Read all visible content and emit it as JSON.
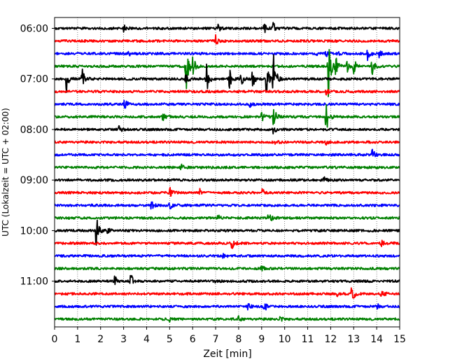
{
  "chart_data": {
    "type": "line",
    "title": "",
    "xlabel": "Zeit  [min]",
    "ylabel": "UTC (Lokalzeit = UTC + 02:00)",
    "xlim": [
      0,
      15
    ],
    "xticks": [
      0,
      1,
      2,
      3,
      4,
      5,
      6,
      7,
      8,
      9,
      10,
      11,
      12,
      13,
      14,
      15
    ],
    "xtick_labels": [
      "0",
      "1",
      "2",
      "3",
      "4",
      "5",
      "6",
      "7",
      "8",
      "9",
      "10",
      "11",
      "12",
      "13",
      "14",
      "15"
    ],
    "ytick_labels": [
      "06:00",
      "07:00",
      "08:00",
      "09:00",
      "10:00",
      "11:00"
    ],
    "ytick_rows": [
      0,
      4,
      8,
      12,
      16,
      20
    ],
    "grid": "vertical dotted",
    "row_minutes": 15,
    "colors": [
      "#000000",
      "#ff0000",
      "#0000ff",
      "#008000"
    ],
    "series": [
      {
        "start": "06:00",
        "color": "#000000",
        "events": [
          {
            "t": 3.0,
            "a": 6
          },
          {
            "t": 7.1,
            "a": 5
          },
          {
            "t": 9.1,
            "a": 8
          },
          {
            "t": 9.5,
            "a": 10
          }
        ]
      },
      {
        "start": "06:15",
        "color": "#ff0000",
        "events": [
          {
            "t": 7.0,
            "a": 9
          }
        ]
      },
      {
        "start": "06:30",
        "color": "#0000ff",
        "events": [
          {
            "t": 3.2,
            "a": 3
          },
          {
            "t": 11.3,
            "a": 4
          },
          {
            "t": 11.8,
            "a": 6
          },
          {
            "t": 12.3,
            "a": 3
          },
          {
            "t": 13.6,
            "a": 10
          },
          {
            "t": 14.1,
            "a": 5
          }
        ]
      },
      {
        "start": "06:45",
        "color": "#008000",
        "events": [
          {
            "t": 5.7,
            "a": 42
          },
          {
            "t": 6.0,
            "a": 16
          },
          {
            "t": 11.9,
            "a": 45
          },
          {
            "t": 12.2,
            "a": 18
          },
          {
            "t": 12.7,
            "a": 9
          },
          {
            "t": 13.0,
            "a": 14
          },
          {
            "t": 13.8,
            "a": 12
          }
        ]
      },
      {
        "start": "07:00",
        "color": "#000000",
        "events": [
          {
            "t": 0.5,
            "a": 22
          },
          {
            "t": 1.2,
            "a": 18
          },
          {
            "t": 5.7,
            "a": 12
          },
          {
            "t": 6.6,
            "a": 22
          },
          {
            "t": 7.6,
            "a": 16
          },
          {
            "t": 8.1,
            "a": 12
          },
          {
            "t": 8.6,
            "a": 14
          },
          {
            "t": 9.2,
            "a": 28
          },
          {
            "t": 9.5,
            "a": 45
          }
        ]
      },
      {
        "start": "07:15",
        "color": "#ff0000",
        "events": [
          {
            "t": 11.8,
            "a": 5
          }
        ]
      },
      {
        "start": "07:30",
        "color": "#0000ff",
        "events": [
          {
            "t": 3.0,
            "a": 14
          },
          {
            "t": 8.5,
            "a": 4
          }
        ]
      },
      {
        "start": "07:45",
        "color": "#008000",
        "events": [
          {
            "t": 4.7,
            "a": 5
          },
          {
            "t": 9.0,
            "a": 7
          },
          {
            "t": 9.5,
            "a": 22
          },
          {
            "t": 11.8,
            "a": 28
          }
        ]
      },
      {
        "start": "08:00",
        "color": "#000000",
        "events": [
          {
            "t": 2.8,
            "a": 5
          },
          {
            "t": 9.5,
            "a": 6
          }
        ]
      },
      {
        "start": "08:15",
        "color": "#ff0000",
        "events": [
          {
            "t": 9.6,
            "a": 4
          },
          {
            "t": 11.8,
            "a": 3
          }
        ]
      },
      {
        "start": "08:30",
        "color": "#0000ff",
        "events": [
          {
            "t": 13.8,
            "a": 8
          }
        ]
      },
      {
        "start": "08:45",
        "color": "#008000",
        "events": [
          {
            "t": 5.5,
            "a": 4
          }
        ]
      },
      {
        "start": "09:00",
        "color": "#000000",
        "events": [
          {
            "t": 11.7,
            "a": 4
          }
        ]
      },
      {
        "start": "09:15",
        "color": "#ff0000",
        "events": [
          {
            "t": 5.0,
            "a": 8
          },
          {
            "t": 6.3,
            "a": 5
          },
          {
            "t": 9.0,
            "a": 8
          }
        ]
      },
      {
        "start": "09:30",
        "color": "#0000ff",
        "events": [
          {
            "t": 4.2,
            "a": 7
          },
          {
            "t": 5.0,
            "a": 6
          }
        ]
      },
      {
        "start": "09:45",
        "color": "#008000",
        "events": [
          {
            "t": 7.1,
            "a": 4
          },
          {
            "t": 9.3,
            "a": 11
          }
        ]
      },
      {
        "start": "10:00",
        "color": "#000000",
        "events": [
          {
            "t": 1.8,
            "a": 28
          },
          {
            "t": 2.3,
            "a": 5
          }
        ]
      },
      {
        "start": "10:15",
        "color": "#ff0000",
        "events": [
          {
            "t": 7.7,
            "a": 10
          },
          {
            "t": 14.2,
            "a": 4
          }
        ]
      },
      {
        "start": "10:30",
        "color": "#0000ff",
        "events": [
          {
            "t": 7.3,
            "a": 4
          }
        ]
      },
      {
        "start": "10:45",
        "color": "#008000",
        "events": [
          {
            "t": 9.0,
            "a": 4
          }
        ]
      },
      {
        "start": "11:00",
        "color": "#000000",
        "events": [
          {
            "t": 2.6,
            "a": 13
          },
          {
            "t": 3.3,
            "a": 13
          },
          {
            "t": 7.0,
            "a": 3
          }
        ]
      },
      {
        "start": "11:15",
        "color": "#ff0000",
        "events": [
          {
            "t": 12.3,
            "a": 5
          },
          {
            "t": 12.9,
            "a": 16
          },
          {
            "t": 14.2,
            "a": 8
          }
        ]
      },
      {
        "start": "11:30",
        "color": "#0000ff",
        "events": [
          {
            "t": 8.4,
            "a": 5
          },
          {
            "t": 9.1,
            "a": 9
          },
          {
            "t": 14.0,
            "a": 4
          }
        ]
      },
      {
        "start": "11:45",
        "color": "#008000",
        "events": [
          {
            "t": 5.0,
            "a": 4
          },
          {
            "t": 8.0,
            "a": 4
          },
          {
            "t": 9.8,
            "a": 4
          }
        ]
      }
    ]
  }
}
